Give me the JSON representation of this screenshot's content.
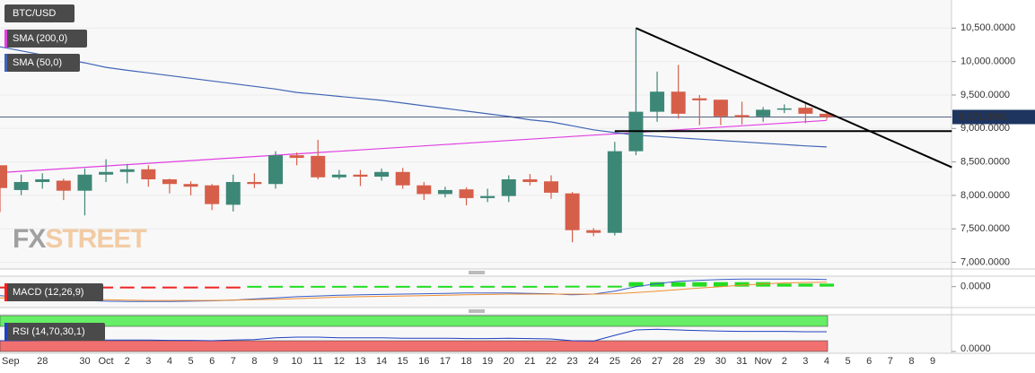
{
  "chart_data": {
    "type": "candlestick",
    "title": "BTC/USD",
    "watermark": [
      "FX",
      "STREET"
    ],
    "categories": [
      "Sep",
      null,
      "28",
      null,
      "30",
      "Oct",
      "2",
      "3",
      "4",
      "5",
      "6",
      "7",
      "8",
      "9",
      "10",
      "11",
      "12",
      "13",
      "14",
      "15",
      "16",
      "17",
      "18",
      "19",
      "20",
      "21",
      "22",
      "23",
      "24",
      "25",
      "26",
      "27",
      "28",
      "29",
      "30",
      "31",
      "Nov",
      "2",
      "3",
      "4",
      "5",
      "6",
      "7",
      "8",
      "9"
    ],
    "open": [
      8450,
      8080,
      8200,
      8220,
      8070,
      8310,
      8350,
      8390,
      8240,
      8170,
      8150,
      7860,
      8200,
      8170,
      8600,
      8590,
      8270,
      8310,
      8280,
      8350,
      8150,
      8020,
      8090,
      7960,
      7990,
      8240,
      8210,
      8030,
      7480,
      7440,
      8660,
      9250,
      9550,
      9450,
      9430,
      9200,
      9180,
      9280,
      9310,
      9220,
      null,
      null,
      null,
      null,
      null
    ],
    "high": [
      8450,
      8310,
      8330,
      8250,
      8400,
      8540,
      8470,
      8450,
      8250,
      8210,
      8170,
      8310,
      8330,
      8660,
      8640,
      8830,
      8380,
      8380,
      8400,
      8410,
      8200,
      8130,
      8120,
      8100,
      8300,
      8320,
      8300,
      8050,
      7510,
      8800,
      10500,
      9850,
      9950,
      9500,
      9430,
      9400,
      9320,
      9360,
      9370,
      9260,
      null,
      null,
      null,
      null,
      null
    ],
    "low": [
      7750,
      8003,
      8100,
      7930,
      7700,
      8200,
      8180,
      8130,
      8030,
      8000,
      7780,
      7760,
      8110,
      8100,
      8450,
      8240,
      8240,
      8140,
      8220,
      8100,
      7930,
      7970,
      7850,
      7900,
      7900,
      8150,
      7950,
      7300,
      7390,
      7400,
      8600,
      9100,
      9150,
      9050,
      9050,
      9060,
      9100,
      9230,
      9080,
      9130,
      null,
      null,
      null,
      null,
      null
    ],
    "close": [
      8110,
      8200,
      8240,
      8070,
      8310,
      8350,
      8390,
      8240,
      8170,
      8130,
      7870,
      8200,
      8170,
      8600,
      8560,
      8270,
      8310,
      8280,
      8350,
      8150,
      8020,
      8080,
      7960,
      7990,
      8240,
      8200,
      8040,
      7480,
      7440,
      8660,
      9250,
      9550,
      9220,
      9420,
      9180,
      9170,
      9280,
      9300,
      9220,
      9170,
      null,
      null,
      null,
      null,
      null
    ],
    "up_color": "#3d8777",
    "down_color": "#d65f4a",
    "series": [
      {
        "name": "SMA (200,0)",
        "color": "#e040e0",
        "values": [
          8340,
          8360,
          8380,
          8400,
          8420,
          8440,
          8460,
          8480,
          8500,
          8520,
          8540,
          8560,
          8580,
          8600,
          8620,
          8640,
          8660,
          8680,
          8700,
          8720,
          8740,
          8760,
          8780,
          8800,
          8820,
          8840,
          8860,
          8880,
          8900,
          8920,
          8940,
          8960,
          8980,
          9000,
          9020,
          9040,
          9060,
          9080,
          9100,
          9120,
          null,
          null,
          null,
          null,
          null
        ]
      },
      {
        "name": "SMA (50,0)",
        "color": "#3f65b5",
        "values": [
          10220,
          10160,
          10100,
          10040,
          9980,
          9913,
          9870,
          9830,
          9790,
          9750,
          9710,
          9670,
          9630,
          9590,
          9539,
          9510,
          9480,
          9450,
          9420,
          9380,
          9339,
          9300,
          9260,
          9220,
          9180,
          9130,
          9098,
          9040,
          8980,
          8938,
          8900,
          8880,
          8860,
          8840,
          8820,
          8800,
          8780,
          8760,
          8740,
          8724,
          null,
          null,
          null,
          null,
          null
        ]
      }
    ],
    "trendlines": [
      {
        "x": [
          30,
          44.9
        ],
        "y": [
          10500,
          8420
        ],
        "color": "#000000"
      },
      {
        "x": [
          29,
          44.9
        ],
        "y": [
          8960,
          8960
        ],
        "color": "#000000"
      }
    ],
    "price_line": {
      "value": 9171.5961,
      "label": "9,171.5961",
      "color": "#1e3560"
    },
    "ylim": [
      6900,
      10920
    ],
    "yticks": [
      {
        "value": 7000,
        "label": "7,000.0000"
      },
      {
        "value": 7500,
        "label": "7,500.0000"
      },
      {
        "value": 8000,
        "label": "8,000.0000"
      },
      {
        "value": 8500,
        "label": "8,500.0000"
      },
      {
        "value": 9000,
        "label": "9,000.0000"
      },
      {
        "value": 9500,
        "label": "9,500.0000"
      },
      {
        "value": 10000,
        "label": "10,000.0000"
      },
      {
        "value": 10500,
        "label": "10,500.0000"
      }
    ],
    "grid": true,
    "macd": {
      "name": "MACD (12,26,9)",
      "histogram": [
        -12,
        -12,
        -12,
        -12,
        -12,
        -12,
        -12,
        -12,
        -12,
        -12,
        -12,
        -12,
        10,
        10,
        10,
        10,
        10,
        10,
        10,
        10,
        10,
        10,
        10,
        10,
        10,
        10,
        10,
        12,
        12,
        12,
        60,
        60,
        60,
        60,
        60,
        60,
        60,
        40,
        40,
        40,
        null,
        null,
        null,
        null,
        null
      ],
      "line": [
        -120,
        -140,
        -160,
        -175,
        -185,
        -195,
        -200,
        -200,
        -200,
        -195,
        -190,
        -180,
        -165,
        -150,
        -135,
        -125,
        -115,
        -110,
        -105,
        -100,
        -95,
        -90,
        -85,
        -85,
        -85,
        -90,
        -95,
        -110,
        -100,
        -60,
        0,
        40,
        70,
        85,
        95,
        100,
        100,
        100,
        100,
        95,
        null,
        null,
        null,
        null,
        null
      ],
      "signal": [
        -150,
        -155,
        -160,
        -165,
        -170,
        -175,
        -180,
        -185,
        -185,
        -185,
        -185,
        -180,
        -175,
        -170,
        -160,
        -150,
        -140,
        -135,
        -130,
        -125,
        -120,
        -115,
        -110,
        -105,
        -100,
        -100,
        -100,
        -100,
        -100,
        -95,
        -80,
        -60,
        -40,
        -20,
        0,
        20,
        35,
        50,
        55,
        60,
        null,
        null,
        null,
        null,
        null
      ],
      "line_color": "#3a5fc8",
      "signal_color": "#f09030",
      "up_color": "#22dd22",
      "down_color": "#ee2222",
      "ylim": [
        -280,
        140
      ],
      "yticks": [
        {
          "value": 0,
          "label": "0.0000"
        }
      ]
    },
    "rsi": {
      "name": "RSI (14,70,30,1)",
      "overbought": 70,
      "oversold": 30,
      "values": [
        30,
        30,
        31,
        31,
        32,
        32,
        32,
        32,
        31,
        31,
        30,
        32,
        33,
        38,
        40,
        40,
        38,
        38,
        38,
        37,
        37,
        37,
        36,
        36,
        37,
        36,
        35,
        30,
        29,
        45,
        60,
        62,
        60,
        58,
        57,
        56,
        56,
        56,
        55,
        55,
        null,
        null,
        null,
        null,
        null
      ],
      "color": "#2040c0",
      "overbought_color": "#66ee66",
      "oversold_color": "#f07070",
      "ylim": [
        0,
        100
      ],
      "yticks": [
        {
          "value": 0,
          "label": "0.0000"
        }
      ]
    }
  }
}
